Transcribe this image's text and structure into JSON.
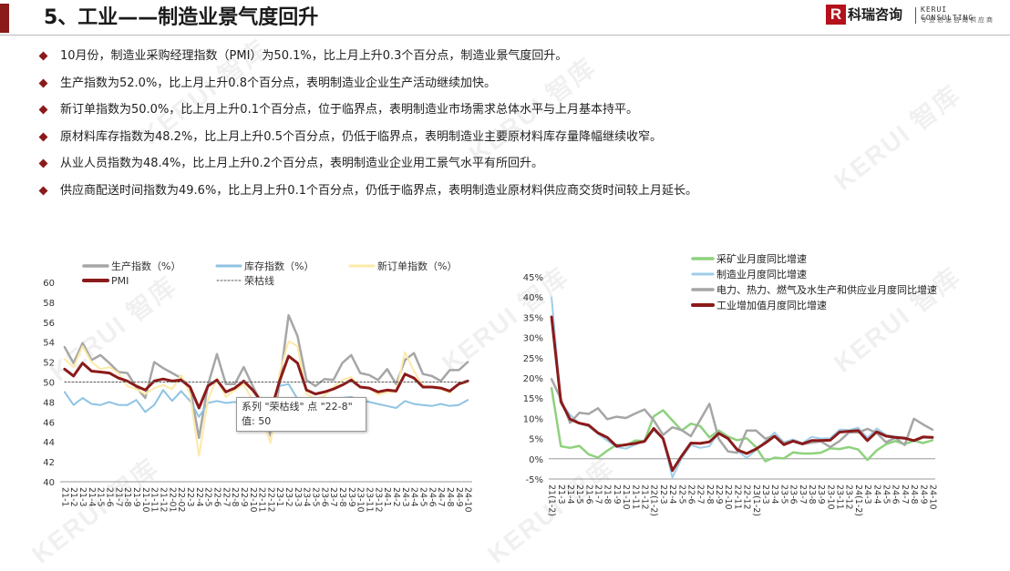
{
  "header": {
    "title": "5、工业——制造业景气度回升",
    "logo_mark": "R",
    "logo_name": "科瑞咨询",
    "logo_en": "KERUI CONSULTING",
    "logo_cn": "专业信息咨询供应商"
  },
  "bullets": [
    "10月份，制造业采购经理指数（PMI）为50.1%，比上月上升0.3个百分点，制造业景气度回升。",
    "生产指数为52.0%，比上月上升0.8个百分点，表明制造业企业生产活动继续加快。",
    "新订单指数为50.0%，比上月上升0.1个百分点，位于临界点，表明制造业市场需求总体水平与上月基本持平。",
    "原材料库存指数为48.2%，比上月上升0.5个百分点，仍低于临界点，表明制造业主要原材料库存量降幅继续收窄。",
    "从业人员指数为48.4%，比上月上升0.2个百分点，表明制造业企业用工景气水平有所回升。",
    "供应商配送时间指数为49.6%，比上月上升0.1个百分点，仍低于临界点，表明制造业原材料供应商交货时间较上月延长。"
  ],
  "watermark": "KERUI 智库",
  "tooltip": {
    "line1": "系列 \"荣枯线\" 点 \"22-8\"",
    "line2": "值: 50"
  },
  "chart_data": [
    {
      "type": "line",
      "x": [
        "21-1",
        "21-2",
        "21-3",
        "21-4",
        "21-5",
        "21-6",
        "21-7",
        "21-8",
        "21-9",
        "21-10",
        "21-11",
        "21-12",
        "22-01",
        "22-02",
        "22-3",
        "22-4",
        "22-5",
        "22-6",
        "22-7",
        "22-8",
        "22-9",
        "22-10",
        "22-11",
        "22-12",
        "23-1",
        "23-2",
        "23-3",
        "23-4",
        "23-5",
        "23-6",
        "23-7",
        "23-8",
        "23-9",
        "23-10",
        "23-11",
        "23-12",
        "24-1",
        "24-2",
        "24-3",
        "24-4",
        "24-5",
        "24-6",
        "24-7",
        "24-8",
        "24-9",
        "24-10"
      ],
      "ylim": [
        40,
        60
      ],
      "yticks": [
        40,
        42,
        44,
        46,
        48,
        50,
        52,
        54,
        56,
        58,
        60
      ],
      "legend": "top",
      "series": [
        {
          "name": "生产指数（%）",
          "color": "#a6a6a6",
          "width": 2.5,
          "values": [
            53.5,
            51.9,
            53.9,
            52.2,
            52.7,
            51.9,
            51.0,
            50.9,
            49.5,
            48.4,
            52.0,
            51.4,
            50.9,
            50.4,
            49.5,
            44.4,
            49.7,
            52.8,
            49.8,
            49.8,
            51.5,
            49.6,
            47.8,
            44.6,
            49.8,
            56.7,
            54.6,
            50.2,
            49.6,
            50.3,
            50.2,
            51.9,
            52.7,
            50.9,
            50.7,
            50.2,
            51.3,
            49.8,
            52.2,
            52.9,
            50.8,
            50.6,
            50.1,
            51.2,
            51.2,
            52.0
          ]
        },
        {
          "name": "库存指数（%）",
          "color": "#8fc3e3",
          "width": 2,
          "values": [
            49.0,
            47.7,
            48.4,
            47.8,
            47.7,
            48.0,
            47.7,
            47.7,
            48.2,
            47.0,
            47.7,
            49.2,
            48.1,
            49.1,
            48.1,
            46.5,
            47.9,
            48.1,
            47.9,
            48.0,
            47.6,
            47.7,
            46.7,
            47.1,
            49.6,
            49.8,
            48.3,
            47.9,
            47.6,
            48.2,
            48.2,
            48.4,
            48.5,
            48.2,
            48.0,
            47.8,
            47.6,
            47.4,
            48.1,
            47.8,
            47.7,
            47.6,
            47.8,
            47.6,
            47.7,
            48.2
          ]
        },
        {
          "name": "新订单指数（%）",
          "color": "#fde9a8",
          "width": 2,
          "values": [
            52.3,
            51.5,
            53.6,
            52.0,
            51.3,
            51.5,
            50.9,
            49.6,
            49.3,
            48.8,
            49.4,
            49.7,
            49.3,
            50.7,
            48.8,
            42.6,
            48.2,
            50.4,
            48.5,
            49.2,
            49.8,
            48.1,
            46.4,
            43.9,
            50.9,
            54.1,
            53.6,
            48.8,
            48.3,
            48.6,
            49.5,
            50.2,
            50.5,
            49.5,
            49.4,
            48.7,
            49.0,
            49.0,
            53.0,
            51.1,
            49.6,
            49.5,
            49.3,
            48.9,
            49.9,
            50.0
          ]
        },
        {
          "name": "PMI",
          "color": "#8b1a1a",
          "width": 3,
          "values": [
            51.3,
            50.6,
            51.9,
            51.1,
            51.0,
            50.9,
            50.4,
            50.1,
            49.6,
            49.2,
            50.1,
            50.3,
            50.1,
            50.2,
            49.5,
            47.4,
            49.6,
            50.2,
            49.0,
            49.4,
            50.1,
            49.2,
            48.0,
            47.0,
            50.1,
            52.6,
            51.9,
            49.2,
            48.8,
            49.0,
            49.3,
            49.7,
            50.2,
            49.5,
            49.4,
            49.0,
            49.2,
            49.1,
            50.8,
            50.4,
            49.5,
            49.5,
            49.4,
            49.1,
            49.8,
            50.1
          ]
        },
        {
          "name": "荣枯线",
          "color": "#595959",
          "width": 1,
          "dash": "2,2",
          "values": [
            50,
            50,
            50,
            50,
            50,
            50,
            50,
            50,
            50,
            50,
            50,
            50,
            50,
            50,
            50,
            50,
            50,
            50,
            50,
            50,
            50,
            50,
            50,
            50,
            50,
            50,
            50,
            50,
            50,
            50,
            50,
            50,
            50,
            50,
            50,
            50,
            50,
            50,
            50,
            50,
            50,
            50,
            50,
            50,
            50,
            50
          ]
        }
      ]
    },
    {
      "type": "line",
      "x": [
        "21(1-2)",
        "21-3",
        "21-4",
        "21-5",
        "21-6",
        "21-7",
        "21-8",
        "21-9",
        "21-10",
        "21-11",
        "21-12",
        "22(1-2)",
        "22-3",
        "22-4",
        "22-5",
        "22-6",
        "22-7",
        "22-8",
        "22-9",
        "22-10",
        "22-11",
        "22-12",
        "23(1-2)",
        "23-3",
        "23-4",
        "23-5",
        "23-6",
        "23-7",
        "23-8",
        "23-9",
        "23-10",
        "23-11",
        "23-12",
        "24(1-2)",
        "24-3",
        "24-4",
        "24-5",
        "24-6",
        "24-7",
        "24-8",
        "24-9",
        "24-10"
      ],
      "ylim": [
        -5,
        45
      ],
      "yticks": [
        "-5%",
        "0%",
        "5%",
        "10%",
        "15%",
        "20%",
        "25%",
        "30%",
        "35%",
        "40%",
        "45%"
      ],
      "legend": "top",
      "series": [
        {
          "name": "采矿业月度同比增速",
          "color": "#8fd17e",
          "width": 2.5,
          "values": [
            17.5,
            3.1,
            2.7,
            3.2,
            1.1,
            0.3,
            2.0,
            3.5,
            3.3,
            4.5,
            4.4,
            10.5,
            12.0,
            9.5,
            7.0,
            8.7,
            8.1,
            5.3,
            7.0,
            5.5,
            4.6,
            5.1,
            2.9,
            -0.6,
            0.3,
            0.1,
            1.6,
            1.3,
            1.3,
            1.5,
            2.6,
            2.4,
            2.9,
            2.3,
            -0.3,
            2.1,
            3.6,
            4.4,
            3.6,
            4.5,
            3.9,
            4.6
          ]
        },
        {
          "name": "制造业月度同比增速",
          "color": "#9fcde8",
          "width": 2,
          "values": [
            39.9,
            14.1,
            10.9,
            8.7,
            8.0,
            6.2,
            4.5,
            2.9,
            2.5,
            3.5,
            4.6,
            7.0,
            5.0,
            -4.6,
            0.1,
            3.4,
            2.7,
            3.1,
            6.5,
            5.0,
            2.0,
            0.2,
            2.1,
            4.4,
            6.5,
            4.1,
            4.8,
            3.9,
            5.4,
            5.0,
            5.1,
            7.2,
            7.1,
            7.7,
            5.2,
            7.5,
            5.9,
            5.5,
            5.3,
            4.3,
            5.2,
            5.2
          ]
        },
        {
          "name": "电力、热力、燃气及水生产和供应业月度同比增速",
          "color": "#a6a6a6",
          "width": 2.5,
          "values": [
            19.7,
            14.8,
            8.9,
            11.4,
            11.1,
            12.5,
            9.8,
            10.4,
            10.1,
            11.2,
            12.2,
            9.5,
            5.9,
            7.8,
            7.1,
            5.6,
            9.6,
            13.6,
            4.9,
            1.8,
            1.5,
            7.0,
            7.0,
            5.0,
            5.6,
            3.9,
            4.3,
            3.6,
            4.0,
            4.3,
            2.9,
            4.4,
            6.5,
            6.5,
            7.4,
            6.4,
            4.1,
            5.2,
            3.4,
            9.9,
            8.5,
            7.2
          ]
        },
        {
          "name": "工业增加值月度同比增速",
          "color": "#8b1a1a",
          "width": 3,
          "values": [
            35.1,
            14.1,
            9.8,
            8.8,
            8.3,
            6.4,
            5.3,
            3.1,
            3.5,
            3.8,
            4.3,
            7.5,
            5.0,
            -2.9,
            0.7,
            3.9,
            3.8,
            4.2,
            6.3,
            5.0,
            2.2,
            1.3,
            2.4,
            3.9,
            5.6,
            3.5,
            4.4,
            3.7,
            4.5,
            4.5,
            4.6,
            6.6,
            6.8,
            7.0,
            4.5,
            6.7,
            5.6,
            5.3,
            5.1,
            4.5,
            5.4,
            5.3
          ]
        }
      ]
    }
  ]
}
